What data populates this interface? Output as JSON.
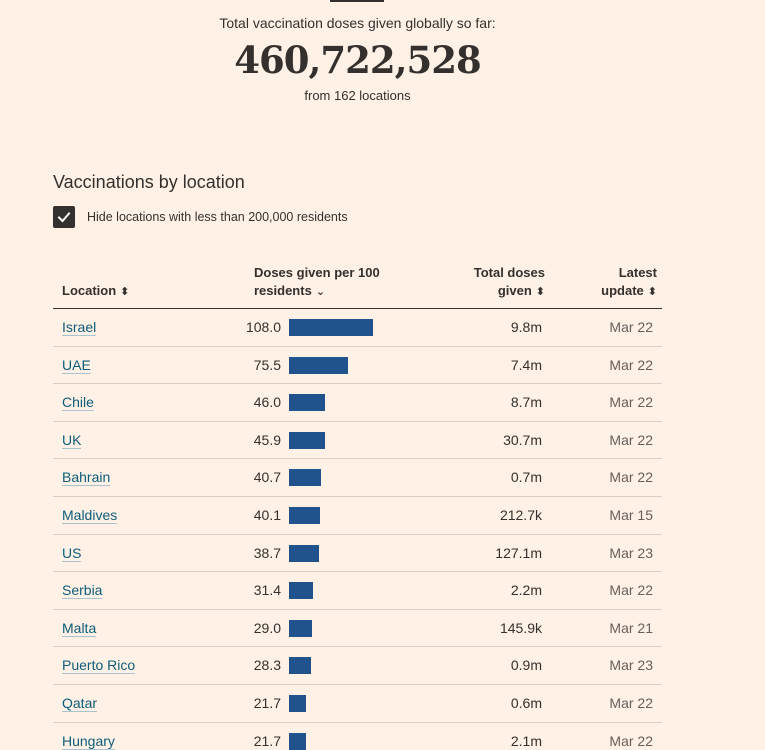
{
  "summary": {
    "label": "Total vaccination doses given globally so far:",
    "total": "460,722,528",
    "sub": "from 162 locations"
  },
  "section": {
    "title": "Vaccinations by location",
    "filter_label": "Hide locations with less than 200,000 residents",
    "filter_checked": true
  },
  "table": {
    "headers": {
      "location": "Location",
      "doses_line1": "Doses given per 100",
      "doses_line2": "residents",
      "total_line1": "Total doses",
      "total_line2": "given",
      "update_line1": "Latest",
      "update_line2": "update"
    },
    "bar_color": "#20528c",
    "bar_max_value": 108.0,
    "rows": [
      {
        "location": "Israel",
        "per100": "108.0",
        "value": 108.0,
        "total": "9.8m",
        "date": "Mar 22"
      },
      {
        "location": "UAE",
        "per100": "75.5",
        "value": 75.5,
        "total": "7.4m",
        "date": "Mar 22"
      },
      {
        "location": "Chile",
        "per100": "46.0",
        "value": 46.0,
        "total": "8.7m",
        "date": "Mar 22"
      },
      {
        "location": "UK",
        "per100": "45.9",
        "value": 45.9,
        "total": "30.7m",
        "date": "Mar 22"
      },
      {
        "location": "Bahrain",
        "per100": "40.7",
        "value": 40.7,
        "total": "0.7m",
        "date": "Mar 22"
      },
      {
        "location": "Maldives",
        "per100": "40.1",
        "value": 40.1,
        "total": "212.7k",
        "date": "Mar 15"
      },
      {
        "location": "US",
        "per100": "38.7",
        "value": 38.7,
        "total": "127.1m",
        "date": "Mar 23"
      },
      {
        "location": "Serbia",
        "per100": "31.4",
        "value": 31.4,
        "total": "2.2m",
        "date": "Mar 22"
      },
      {
        "location": "Malta",
        "per100": "29.0",
        "value": 29.0,
        "total": "145.9k",
        "date": "Mar 21"
      },
      {
        "location": "Puerto Rico",
        "per100": "28.3",
        "value": 28.3,
        "total": "0.9m",
        "date": "Mar 23"
      },
      {
        "location": "Qatar",
        "per100": "21.7",
        "value": 21.7,
        "total": "0.6m",
        "date": "Mar 22"
      },
      {
        "location": "Hungary",
        "per100": "21.7",
        "value": 21.7,
        "total": "2.1m",
        "date": "Mar 22"
      }
    ]
  }
}
